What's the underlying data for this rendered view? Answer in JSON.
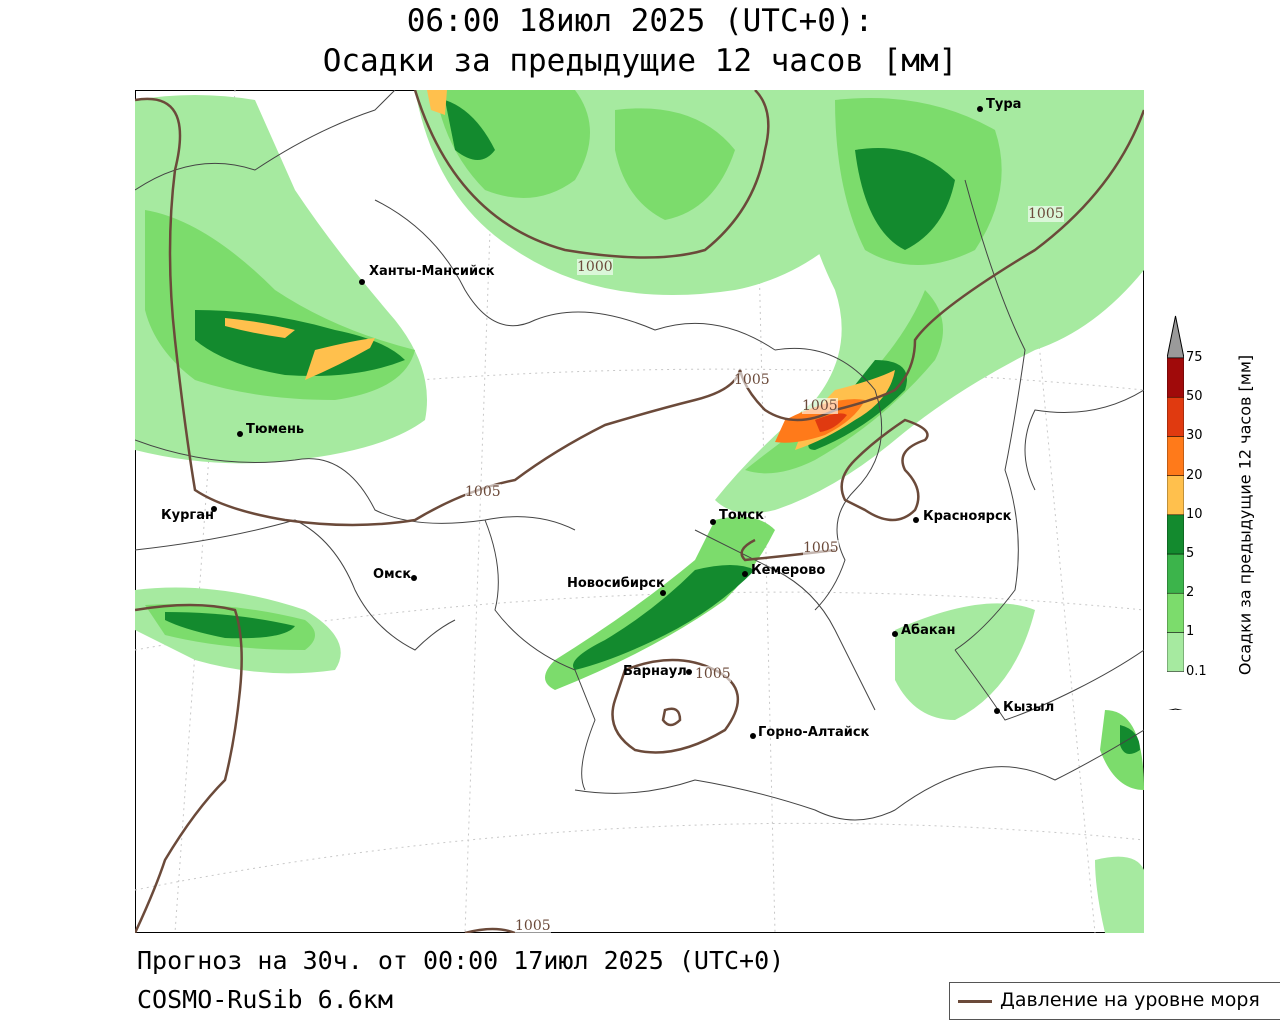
{
  "header": {
    "line1": "06:00 18июл 2025 (UTC+0):",
    "line2": "Осадки за предыдущие 12 часов [мм]"
  },
  "footer": {
    "forecast": "Прогноз на 30ч. от 00:00 17июл 2025 (UTC+0)",
    "model": "COSMO-RuSib 6.6км"
  },
  "legend": {
    "line_label": "Давление на уровне моря",
    "line_color": "#6b4a3a"
  },
  "colorbar": {
    "title": "Осадки за предыдущие 12 часов [мм]",
    "levels": [
      "0.1",
      "1",
      "2",
      "5",
      "10",
      "20",
      "30",
      "50",
      "75"
    ],
    "colors": [
      "#a6eaa0",
      "#7cdc6c",
      "#3cb44b",
      "#138a2e",
      "#ffc04d",
      "#ff7a1a",
      "#e03a10",
      "#a00a0a",
      "#9a9a9a"
    ]
  },
  "cities": [
    {
      "name": "Тура"
    },
    {
      "name": "Ханты-Мансийск"
    },
    {
      "name": "Тюмень"
    },
    {
      "name": "Курган"
    },
    {
      "name": "Омск"
    },
    {
      "name": "Новосибирск"
    },
    {
      "name": "Томск"
    },
    {
      "name": "Кемерово"
    },
    {
      "name": "Красноярск"
    },
    {
      "name": "Абакан"
    },
    {
      "name": "Барнаул"
    },
    {
      "name": "Горно-Алтайск"
    },
    {
      "name": "Кызыл"
    }
  ],
  "isobars": {
    "label_1000": "1000",
    "label_1005": "1005"
  }
}
